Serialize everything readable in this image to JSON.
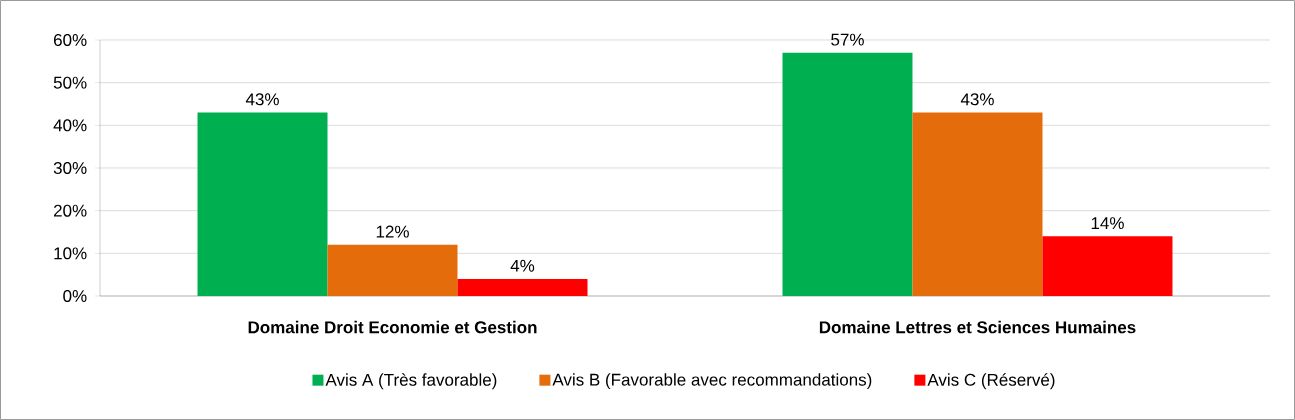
{
  "chart_data": {
    "type": "bar",
    "categories": [
      "Domaine Droit Economie et Gestion",
      "Domaine Lettres et Sciences Humaines"
    ],
    "series": [
      {
        "name": "Avis A (Très favorable)",
        "color": "#00b050",
        "values": [
          43,
          57
        ],
        "value_labels": [
          "43%",
          "57%"
        ]
      },
      {
        "name": "Avis B (Favorable avec recommandations)",
        "color": "#e46c0a",
        "values": [
          12,
          43
        ],
        "value_labels": [
          "12%",
          "43%"
        ]
      },
      {
        "name": "Avis C (Réservé)",
        "color": "#ff0000",
        "values": [
          4,
          14
        ],
        "value_labels": [
          "4%",
          "14%"
        ]
      }
    ],
    "ylim": [
      0,
      60
    ],
    "yticks": [
      {
        "value": 0,
        "label": "0%"
      },
      {
        "value": 10,
        "label": "10%"
      },
      {
        "value": 20,
        "label": "20%"
      },
      {
        "value": 30,
        "label": "30%"
      },
      {
        "value": 40,
        "label": "40%"
      },
      {
        "value": 50,
        "label": "50%"
      },
      {
        "value": 60,
        "label": "60%"
      }
    ],
    "grid": "y",
    "legend": "bottom"
  }
}
